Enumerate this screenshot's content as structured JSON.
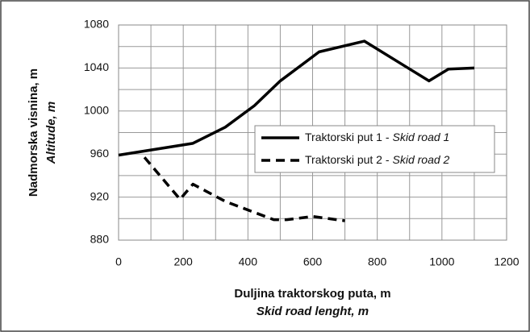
{
  "chart_data": {
    "type": "line",
    "xlabel": [
      "Duljina traktorskog puta, m",
      "Skid road lenght, m"
    ],
    "ylabel": [
      "Nadmorska visnina, m",
      "Altitude, m"
    ],
    "xlim": [
      0,
      1200
    ],
    "ylim": [
      880,
      1080
    ],
    "xticks": [
      0,
      200,
      400,
      600,
      800,
      1000,
      1200
    ],
    "yticks": [
      880,
      920,
      960,
      1000,
      1040,
      1080
    ],
    "x_minor_grid": [
      100,
      300,
      500,
      700,
      900,
      1100
    ],
    "y_minor_grid": [
      900,
      940,
      980,
      1020,
      1060
    ],
    "grid": true,
    "legend": "center-right",
    "series": [
      {
        "name": "Traktorski put 1 -",
        "name_italic": "Skid road 1",
        "color": "#000000",
        "dash": false,
        "x": [
          0,
          230,
          330,
          420,
          500,
          620,
          760,
          960,
          1020,
          1100
        ],
        "values": [
          959,
          970,
          985,
          1005,
          1028,
          1055,
          1065,
          1028,
          1039,
          1040
        ]
      },
      {
        "name": "Traktorski put 2 -",
        "name_italic": "Skid road 2",
        "color": "#000000",
        "dash": true,
        "x": [
          80,
          190,
          230,
          330,
          480,
          520,
          600,
          700
        ],
        "values": [
          957,
          918,
          932,
          916,
          899,
          899,
          902,
          898
        ]
      }
    ]
  }
}
